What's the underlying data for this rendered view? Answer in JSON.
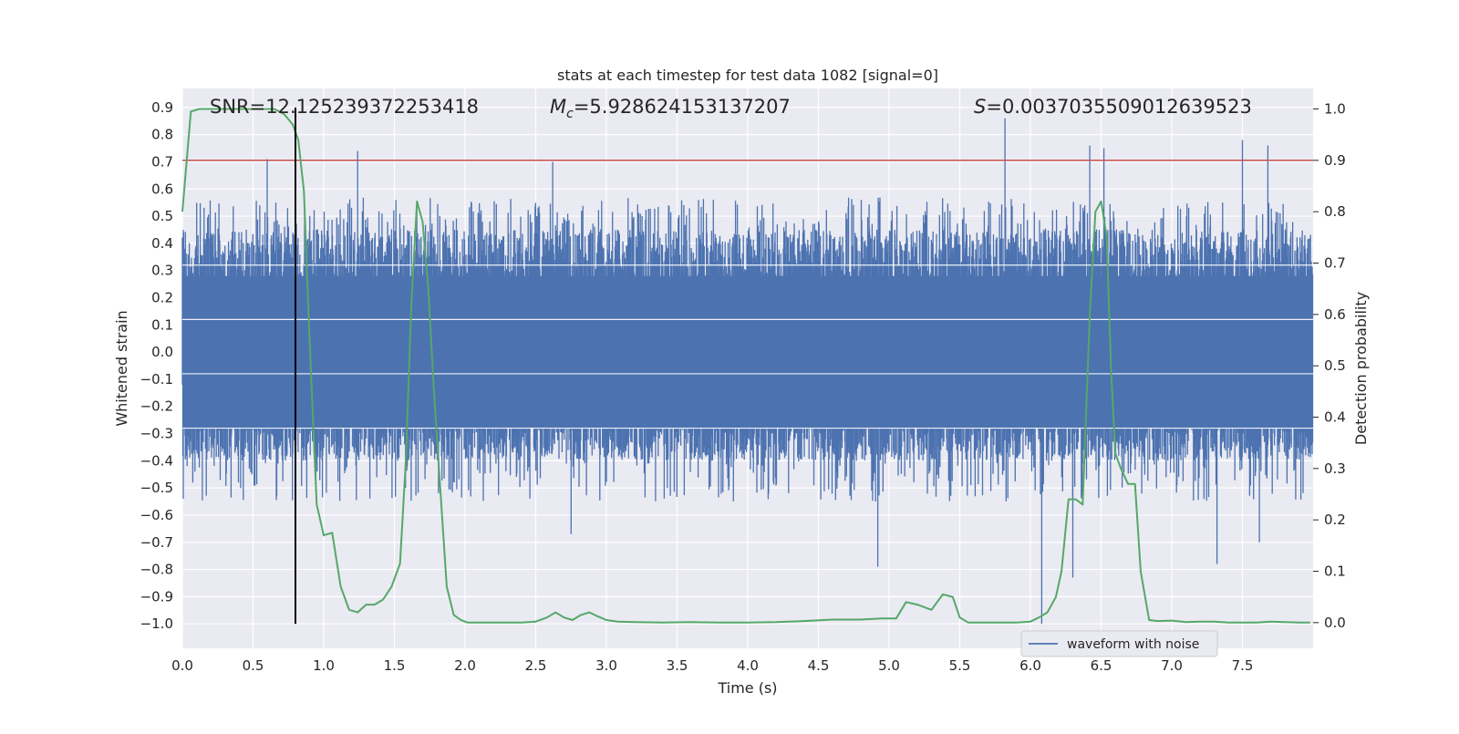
{
  "chart_data": {
    "type": "line",
    "title": "stats at each timestep for test data 1082 [signal=0]",
    "xlabel": "Time (s)",
    "ylabel": "Whitened strain",
    "y2label": "Detection probability",
    "xlim": [
      0.0,
      8.0
    ],
    "ylim": [
      -1.09,
      0.97
    ],
    "y2lim": [
      -0.05,
      1.04
    ],
    "x_ticks": [
      "0.0",
      "0.5",
      "1.0",
      "1.5",
      "2.0",
      "2.5",
      "3.0",
      "3.5",
      "4.0",
      "4.5",
      "5.0",
      "5.5",
      "6.0",
      "6.5",
      "7.0",
      "7.5"
    ],
    "y_ticks": [
      "0.9",
      "0.8",
      "0.7",
      "0.6",
      "0.5",
      "0.4",
      "0.3",
      "0.2",
      "0.1",
      "0.0",
      "−0.1",
      "−0.2",
      "−0.3",
      "−0.4",
      "−0.5",
      "−0.6",
      "−0.7",
      "−0.8",
      "−0.9",
      "−1.0"
    ],
    "y2_ticks": [
      "1.0",
      "0.9",
      "0.8",
      "0.7",
      "0.6",
      "0.5",
      "0.4",
      "0.3",
      "0.2",
      "0.1",
      "0.0"
    ],
    "annotations": {
      "snr": "SNR=12.125239372253418",
      "mc_symbol": "M",
      "mc_subscript": "c",
      "mc_value": "=5.928624153137207",
      "s_symbol": "S",
      "s_value": "=0.0037035509012639523"
    },
    "threshold": {
      "value": 0.9,
      "axis": "y2",
      "color": "#c44e52"
    },
    "marker_line": {
      "x": 0.8,
      "y_from": -1.0,
      "y_to": 0.9,
      "color": "#000000"
    },
    "grid": true,
    "legend": {
      "placement": "lower-center-right",
      "entries": [
        "waveform with noise"
      ]
    },
    "series": [
      {
        "name": "waveform with noise",
        "axis": "y",
        "color": "#4c72b0",
        "kind": "noise",
        "envelope_upper": [
          0.45,
          0.5
        ],
        "envelope_lower": [
          -0.4,
          -0.5
        ],
        "spikes": [
          {
            "x": 0.6,
            "y": 0.71
          },
          {
            "x": 1.24,
            "y": 0.74
          },
          {
            "x": 2.62,
            "y": 0.7
          },
          {
            "x": 5.82,
            "y": 0.86
          },
          {
            "x": 6.42,
            "y": 0.76
          },
          {
            "x": 6.52,
            "y": 0.75
          },
          {
            "x": 7.5,
            "y": 0.78
          },
          {
            "x": 7.68,
            "y": 0.76
          },
          {
            "x": 2.75,
            "y": -0.67
          },
          {
            "x": 4.92,
            "y": -0.79
          },
          {
            "x": 6.08,
            "y": -1.0
          },
          {
            "x": 6.3,
            "y": -0.83
          },
          {
            "x": 7.32,
            "y": -0.78
          },
          {
            "x": 7.62,
            "y": -0.7
          }
        ]
      },
      {
        "name": "",
        "axis": "y2",
        "color": "#55a868",
        "x": [
          0.0,
          0.06,
          0.12,
          0.2,
          0.3,
          0.4,
          0.5,
          0.6,
          0.65,
          0.72,
          0.78,
          0.82,
          0.86,
          0.9,
          0.95,
          1.0,
          1.06,
          1.12,
          1.18,
          1.24,
          1.3,
          1.36,
          1.42,
          1.48,
          1.54,
          1.58,
          1.62,
          1.66,
          1.7,
          1.74,
          1.78,
          1.82,
          1.87,
          1.92,
          1.97,
          2.02,
          2.1,
          2.2,
          2.3,
          2.4,
          2.5,
          2.58,
          2.64,
          2.7,
          2.76,
          2.82,
          2.88,
          2.94,
          3.0,
          3.08,
          3.2,
          3.4,
          3.6,
          3.8,
          4.0,
          4.2,
          4.4,
          4.6,
          4.8,
          4.95,
          5.05,
          5.12,
          5.2,
          5.3,
          5.38,
          5.45,
          5.5,
          5.56,
          5.62,
          5.7,
          5.8,
          5.9,
          6.0,
          6.06,
          6.12,
          6.18,
          6.22,
          6.27,
          6.32,
          6.37,
          6.42,
          6.46,
          6.5,
          6.54,
          6.57,
          6.6,
          6.64,
          6.69,
          6.74,
          6.78,
          6.84,
          6.9,
          7.0,
          7.1,
          7.2,
          7.3,
          7.4,
          7.5,
          7.6,
          7.7,
          7.8,
          7.9,
          7.98
        ],
        "values": [
          0.8,
          0.995,
          1.0,
          1.0,
          1.0,
          1.0,
          1.0,
          1.0,
          1.0,
          0.99,
          0.97,
          0.94,
          0.84,
          0.55,
          0.23,
          0.17,
          0.175,
          0.07,
          0.025,
          0.02,
          0.035,
          0.035,
          0.045,
          0.07,
          0.115,
          0.31,
          0.62,
          0.82,
          0.78,
          0.65,
          0.45,
          0.28,
          0.07,
          0.015,
          0.005,
          0.0,
          0.0,
          0.0,
          0.0,
          0.0,
          0.002,
          0.01,
          0.02,
          0.01,
          0.005,
          0.015,
          0.02,
          0.012,
          0.005,
          0.002,
          0.001,
          0.0,
          0.001,
          0.0,
          0.0,
          0.001,
          0.003,
          0.006,
          0.006,
          0.008,
          0.008,
          0.04,
          0.035,
          0.025,
          0.055,
          0.05,
          0.01,
          0.0,
          0.0,
          0.0,
          0.0,
          0.0,
          0.002,
          0.01,
          0.02,
          0.05,
          0.1,
          0.24,
          0.24,
          0.23,
          0.6,
          0.8,
          0.82,
          0.75,
          0.5,
          0.33,
          0.3,
          0.27,
          0.27,
          0.1,
          0.005,
          0.003,
          0.004,
          0.001,
          0.002,
          0.002,
          0.0,
          0.0,
          0.0,
          0.002,
          0.001,
          0.0,
          0.0
        ]
      }
    ]
  },
  "colors": {
    "plot_bg": "#eaeaf2",
    "grid": "#ffffff",
    "noise": "#4c72b0",
    "probability": "#55a868",
    "threshold": "#c44e52",
    "marker": "#000000"
  }
}
